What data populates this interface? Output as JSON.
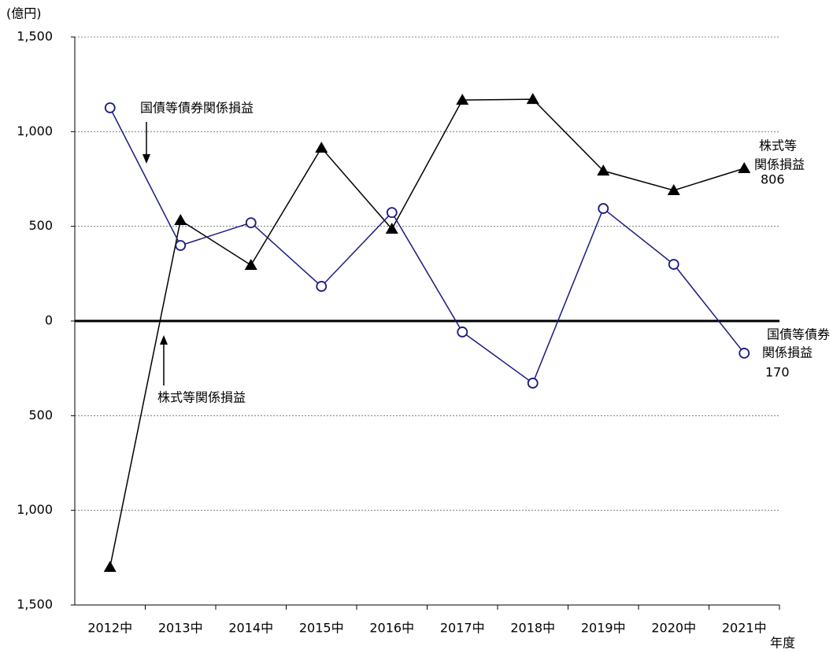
{
  "chart_data": {
    "type": "line",
    "y_label": "(億円)",
    "x_label": "年度",
    "categories": [
      "2012中",
      "2013中",
      "2014中",
      "2015中",
      "2016中",
      "2017中",
      "2018中",
      "2019中",
      "2020中",
      "2021中"
    ],
    "series": [
      {
        "name": "株式等関係損益",
        "color": "#000000",
        "marker": "triangle",
        "values": [
          -1300,
          532,
          295,
          914,
          486,
          1167,
          1171,
          793,
          690,
          806
        ],
        "value_labels": [
          null,
          null,
          null,
          null,
          null,
          null,
          null,
          null,
          null,
          "806"
        ]
      },
      {
        "name": "国債等債券関係損益",
        "color": "#1a1a80",
        "marker": "circle",
        "values": [
          1126,
          399,
          519,
          183,
          573,
          -58,
          -328,
          594,
          299,
          -170
        ],
        "value_labels": [
          null,
          null,
          null,
          null,
          null,
          null,
          null,
          null,
          null,
          "170"
        ]
      }
    ],
    "annotations": [
      "株式等",
      "関係損益",
      "国債等債券",
      "関係損益"
    ],
    "ylim": [
      -1500,
      1500
    ],
    "yticks": [
      {
        "value": -1500,
        "label": "1,500"
      },
      {
        "value": -1000,
        "label": "1,000"
      },
      {
        "value": -500,
        "label": "500"
      },
      0,
      500,
      {
        "value": 1000,
        "label": "1,000"
      },
      {
        "value": 1500,
        "label": "1,500"
      }
    ],
    "grid": true
  }
}
